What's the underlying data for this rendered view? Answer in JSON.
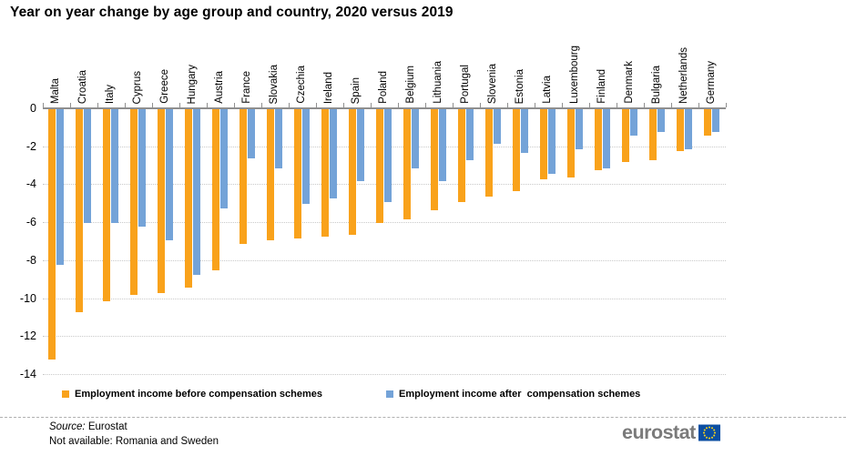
{
  "title": "Year on year change by age group and country, 2020 versus 2019",
  "chart_data": {
    "type": "bar",
    "categories": [
      "Malta",
      "Croatia",
      "Italy",
      "Cyprus",
      "Greece",
      "Hungary",
      "Austria",
      "France",
      "Slovakia",
      "Czechia",
      "Ireland",
      "Spain",
      "Poland",
      "Belgium",
      "Lithuania",
      "Portugal",
      "Slovenia",
      "Estonia",
      "Latvia",
      "Luxembourg",
      "Finland",
      "Denmark",
      "Bulgaria",
      "Netherlands",
      "Germany"
    ],
    "series": [
      {
        "name": "Employment income before compensation schemes",
        "color": "#F9A21B",
        "values": [
          -13.2,
          -10.7,
          -10.1,
          -9.8,
          -9.7,
          -9.4,
          -8.5,
          -7.1,
          -6.9,
          -6.8,
          -6.7,
          -6.6,
          -6.0,
          -5.8,
          -5.3,
          -4.9,
          -4.6,
          -4.3,
          -3.7,
          -3.6,
          -3.2,
          -2.8,
          -2.7,
          -2.2,
          -1.4
        ]
      },
      {
        "name": "Employment income after  compensation schemes",
        "color": "#74A3D8",
        "values": [
          -8.2,
          -6.0,
          -6.0,
          -6.2,
          -6.9,
          -8.7,
          -5.2,
          -2.6,
          -3.1,
          -5.0,
          -4.7,
          -3.8,
          -4.9,
          -3.1,
          -3.8,
          -2.7,
          -1.8,
          -2.3,
          -3.4,
          -2.1,
          -3.1,
          -1.4,
          -1.2,
          -2.1,
          -1.2
        ]
      }
    ],
    "ylim": [
      -14,
      0
    ],
    "yticks": [
      0,
      -2,
      -4,
      -6,
      -8,
      -10,
      -12,
      -14
    ],
    "xlabel": "",
    "ylabel": "",
    "grid": "horizontal-dotted",
    "legend_position": "bottom",
    "axis_color": "#8f8f8f"
  },
  "footer": {
    "source_prefix": "Source:",
    "source_value": " Eurostat",
    "note": "Not available: Romania and Sweden"
  },
  "logo": {
    "text": "eurostat",
    "flag_blue": "#0B4EA2",
    "star_yellow": "#FFD617"
  }
}
